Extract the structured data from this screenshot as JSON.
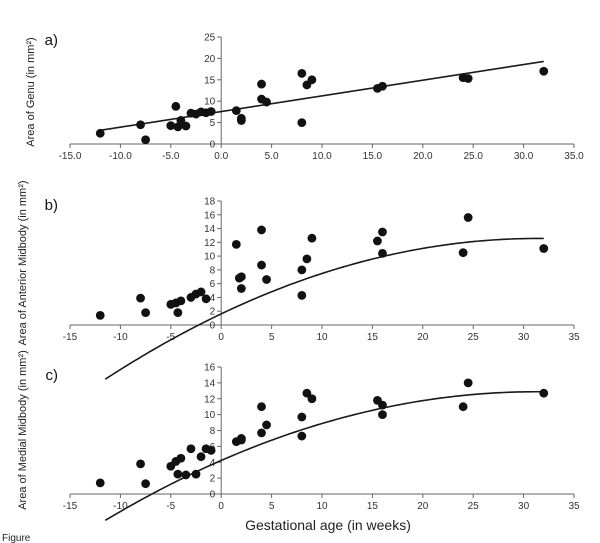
{
  "figure": {
    "xlabel": "Gestational age (in weeks)",
    "footer_text": "Figure"
  },
  "chart_data": [
    {
      "type": "scatter",
      "panel_label": "a)",
      "title": "",
      "xlabel": "Gestational age (in weeks)",
      "ylabel": "Area of Genu (in mm²)",
      "xlim": [
        -15,
        35
      ],
      "ylim": [
        0,
        25
      ],
      "xticks": [
        -15,
        -10,
        -5,
        0,
        5,
        10,
        15,
        20,
        25,
        30,
        35
      ],
      "xtick_labels": [
        "-15.0",
        "-10.0",
        "-5.0",
        "0.0",
        "5.0",
        "10.0",
        "15.0",
        "20.0",
        "25.0",
        "30.0",
        "35.0"
      ],
      "yticks": [
        0,
        5,
        10,
        15,
        20,
        25
      ],
      "ytick_labels": [
        "0",
        "5",
        "10",
        "15",
        "20",
        "25"
      ],
      "grid": false,
      "legend": false,
      "series": [
        {
          "values": [
            {
              "x": -12,
              "y": 2.5
            },
            {
              "x": -8,
              "y": 4.5
            },
            {
              "x": -7.5,
              "y": 1.0
            },
            {
              "x": -5,
              "y": 4.3
            },
            {
              "x": -4.5,
              "y": 8.8
            },
            {
              "x": -4.3,
              "y": 4.0
            },
            {
              "x": -4,
              "y": 5.5
            },
            {
              "x": -3.5,
              "y": 4.2
            },
            {
              "x": -3,
              "y": 7.2
            },
            {
              "x": -2.5,
              "y": 7.0
            },
            {
              "x": -2,
              "y": 7.5
            },
            {
              "x": -1.5,
              "y": 7.3
            },
            {
              "x": -1,
              "y": 7.6
            },
            {
              "x": 1.5,
              "y": 7.8
            },
            {
              "x": 2,
              "y": 6.0
            },
            {
              "x": 2,
              "y": 5.5
            },
            {
              "x": 4,
              "y": 14.0
            },
            {
              "x": 4,
              "y": 10.5
            },
            {
              "x": 4.5,
              "y": 9.8
            },
            {
              "x": 8,
              "y": 16.5
            },
            {
              "x": 8,
              "y": 5.0
            },
            {
              "x": 8.5,
              "y": 13.8
            },
            {
              "x": 9,
              "y": 15.0
            },
            {
              "x": 15.5,
              "y": 13.0
            },
            {
              "x": 16,
              "y": 13.5
            },
            {
              "x": 24,
              "y": 15.5
            },
            {
              "x": 24.5,
              "y": 15.3
            },
            {
              "x": 32,
              "y": 17.0
            }
          ]
        }
      ],
      "fit": {
        "type": "linear",
        "x": [
          -12,
          32
        ],
        "y": [
          3.2,
          19.3
        ]
      }
    },
    {
      "type": "scatter",
      "panel_label": "b)",
      "title": "",
      "xlabel": "Gestational age (in weeks)",
      "ylabel": "Area of Anterior Midbody (in mm²)",
      "xlim": [
        -15,
        35
      ],
      "ylim": [
        0,
        18
      ],
      "xticks": [
        -15,
        -10,
        -5,
        0,
        5,
        10,
        15,
        20,
        25,
        30,
        35
      ],
      "xtick_labels": [
        "-15",
        "-10",
        "-5",
        "0",
        "5",
        "10",
        "15",
        "20",
        "25",
        "30",
        "35"
      ],
      "yticks": [
        0,
        2,
        4,
        6,
        8,
        10,
        12,
        14,
        16,
        18
      ],
      "ytick_labels": [
        "0",
        "2",
        "4",
        "6",
        "8",
        "10",
        "12",
        "14",
        "16",
        "18"
      ],
      "grid": false,
      "legend": false,
      "series": [
        {
          "values": [
            {
              "x": -12,
              "y": 1.4
            },
            {
              "x": -8,
              "y": 3.9
            },
            {
              "x": -7.5,
              "y": 1.8
            },
            {
              "x": -5,
              "y": 3.0
            },
            {
              "x": -4.5,
              "y": 3.2
            },
            {
              "x": -4.3,
              "y": 1.8
            },
            {
              "x": -4,
              "y": 3.5
            },
            {
              "x": -3,
              "y": 4.0
            },
            {
              "x": -2.5,
              "y": 4.5
            },
            {
              "x": -2,
              "y": 4.8
            },
            {
              "x": -1.5,
              "y": 3.8
            },
            {
              "x": 1.5,
              "y": 11.7
            },
            {
              "x": 1.8,
              "y": 6.8
            },
            {
              "x": 2,
              "y": 7.0
            },
            {
              "x": 2,
              "y": 5.3
            },
            {
              "x": 4,
              "y": 13.8
            },
            {
              "x": 4,
              "y": 8.7
            },
            {
              "x": 4.5,
              "y": 6.6
            },
            {
              "x": 8,
              "y": 8.0
            },
            {
              "x": 8,
              "y": 4.3
            },
            {
              "x": 8.5,
              "y": 9.6
            },
            {
              "x": 9,
              "y": 12.6
            },
            {
              "x": 15.5,
              "y": 12.2
            },
            {
              "x": 16,
              "y": 13.5
            },
            {
              "x": 16,
              "y": 10.4
            },
            {
              "x": 24,
              "y": 10.5
            },
            {
              "x": 24.5,
              "y": 15.6
            },
            {
              "x": 32,
              "y": 11.1
            }
          ]
        }
      ],
      "fit": {
        "type": "quadratic",
        "x_range": [
          -11.5,
          32
        ],
        "coefficients": {
          "a": -0.0111,
          "b": 0.6972,
          "c": 1.615
        }
      }
    },
    {
      "type": "scatter",
      "panel_label": "c)",
      "title": "",
      "xlabel": "Gestational age (in weeks)",
      "ylabel": "Area of Medial Midbody (in mm²)",
      "xlim": [
        -15,
        35
      ],
      "ylim": [
        0,
        16
      ],
      "xticks": [
        -15,
        -10,
        -5,
        0,
        5,
        10,
        15,
        20,
        25,
        30,
        35
      ],
      "xtick_labels": [
        "-15",
        "-10",
        "-5",
        "0",
        "5",
        "10",
        "15",
        "20",
        "25",
        "30",
        "35"
      ],
      "yticks": [
        0,
        2,
        4,
        6,
        8,
        10,
        12,
        14,
        16
      ],
      "ytick_labels": [
        "0",
        "2",
        "4",
        "6",
        "8",
        "10",
        "12",
        "14",
        "16"
      ],
      "grid": false,
      "legend": false,
      "series": [
        {
          "values": [
            {
              "x": -12,
              "y": 1.4
            },
            {
              "x": -8,
              "y": 3.8
            },
            {
              "x": -7.5,
              "y": 1.3
            },
            {
              "x": -5,
              "y": 3.5
            },
            {
              "x": -4.5,
              "y": 4.1
            },
            {
              "x": -4.3,
              "y": 2.5
            },
            {
              "x": -4,
              "y": 4.5
            },
            {
              "x": -3.5,
              "y": 2.4
            },
            {
              "x": -3,
              "y": 5.7
            },
            {
              "x": -2.5,
              "y": 2.5
            },
            {
              "x": -2,
              "y": 4.7
            },
            {
              "x": -1.5,
              "y": 5.7
            },
            {
              "x": -1,
              "y": 5.5
            },
            {
              "x": 1.5,
              "y": 6.6
            },
            {
              "x": 2,
              "y": 7.0
            },
            {
              "x": 2,
              "y": 6.8
            },
            {
              "x": 4,
              "y": 11.0
            },
            {
              "x": 4,
              "y": 7.7
            },
            {
              "x": 4.5,
              "y": 8.7
            },
            {
              "x": 8,
              "y": 9.7
            },
            {
              "x": 8,
              "y": 7.3
            },
            {
              "x": 8.5,
              "y": 12.7
            },
            {
              "x": 9,
              "y": 12.0
            },
            {
              "x": 15.5,
              "y": 11.8
            },
            {
              "x": 16,
              "y": 11.2
            },
            {
              "x": 16,
              "y": 10.0
            },
            {
              "x": 24,
              "y": 11.0
            },
            {
              "x": 24.5,
              "y": 14.0
            },
            {
              "x": 32,
              "y": 12.7
            }
          ]
        }
      ],
      "fit": {
        "type": "quadratic",
        "x_range": [
          -11.5,
          32
        ],
        "coefficients": {
          "a": -0.00887,
          "b": 0.5542,
          "c": 4.225
        }
      }
    }
  ]
}
